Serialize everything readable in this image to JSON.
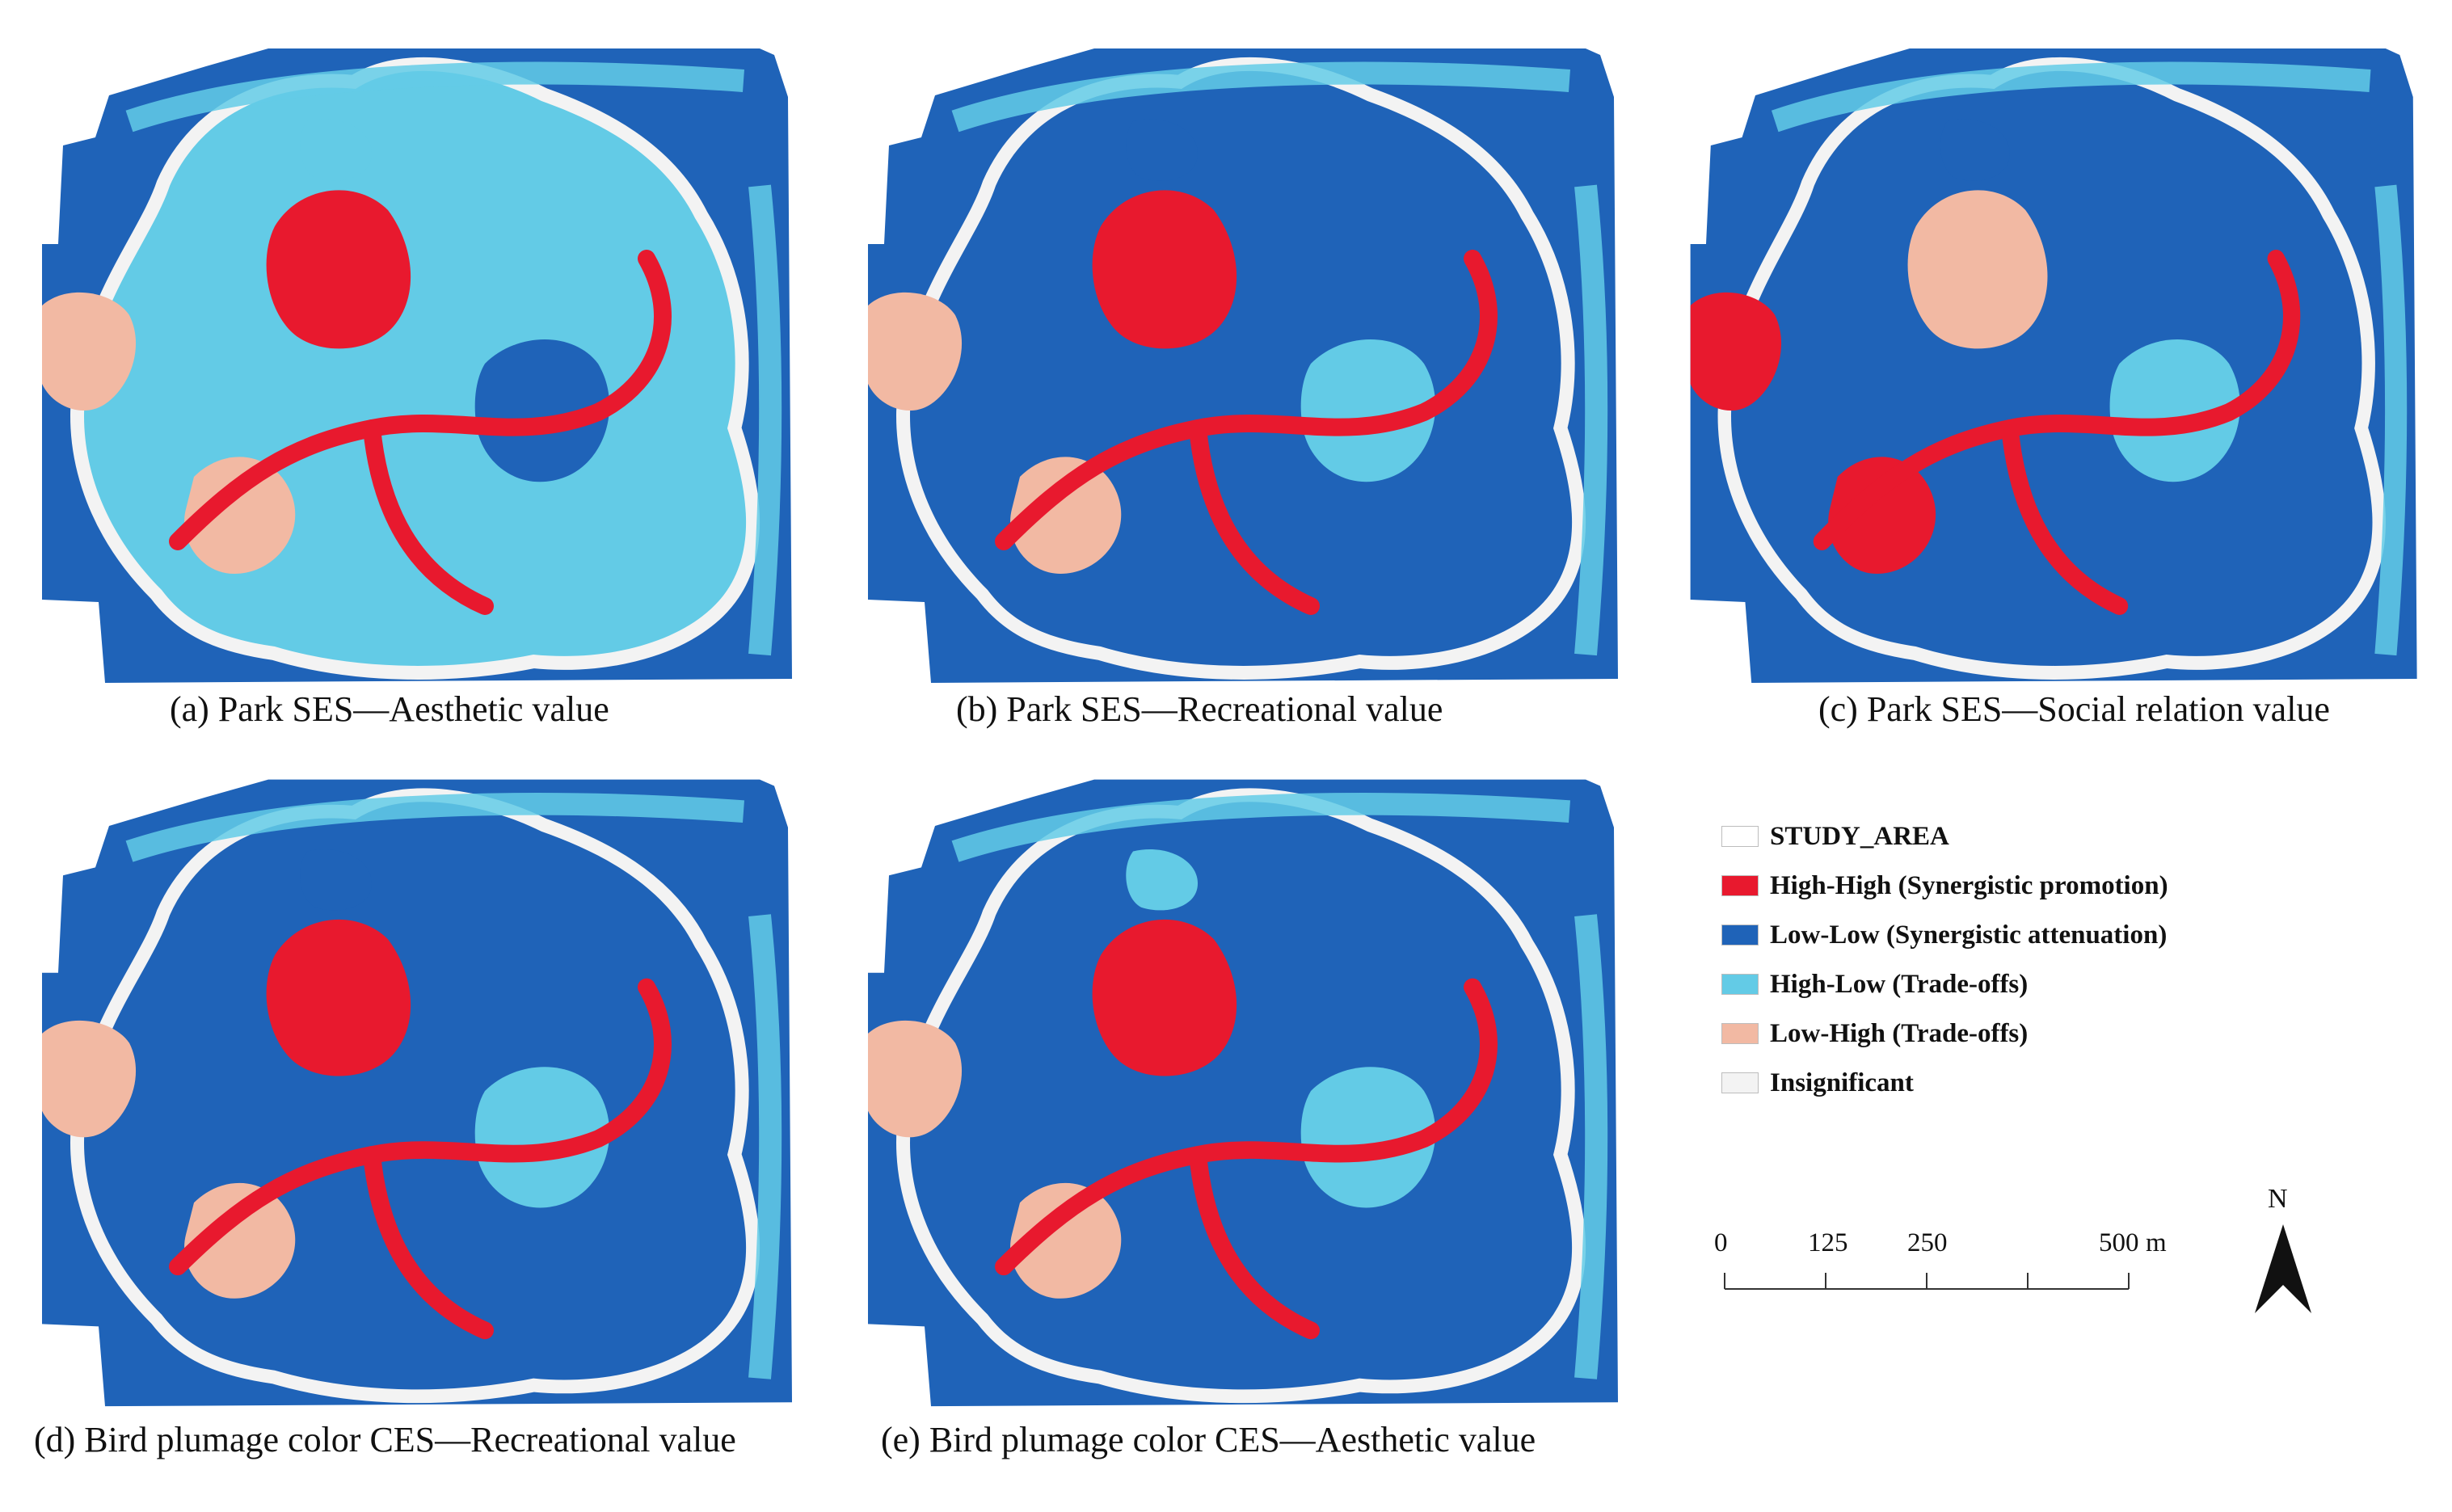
{
  "colors": {
    "study_area": "#ffffff",
    "high_high": "#e8192e",
    "low_low": "#1f63b8",
    "high_low": "#63cbe6",
    "low_high": "#f2b9a3",
    "insignificant": "#f3f3f3"
  },
  "panels": [
    {
      "id": "a",
      "caption": "(a) Park SES—Aesthetic value",
      "zones": [
        "high_low",
        "low_high",
        "high_high",
        "low_low",
        "low_high",
        "high_low"
      ]
    },
    {
      "id": "b",
      "caption": "(b) Park SES—Recreational value",
      "zones": [
        "low_low",
        "low_high",
        "high_high",
        "high_low",
        "low_high",
        "low_low"
      ]
    },
    {
      "id": "c",
      "caption": "(c) Park SES—Social relation value",
      "zones": [
        "low_low",
        "high_high",
        "low_high",
        "high_low",
        "high_high",
        "low_low"
      ]
    },
    {
      "id": "d",
      "caption": "(d) Bird plumage color CES—Recreational value",
      "zones": [
        "low_low",
        "low_high",
        "high_high",
        "high_low",
        "low_high",
        "low_low"
      ]
    },
    {
      "id": "e",
      "caption": "(e) Bird plumage color CES—Aesthetic value",
      "zones": [
        "low_low",
        "low_high",
        "high_high",
        "high_low",
        "low_high",
        "high_low"
      ]
    }
  ],
  "legend": [
    {
      "key": "study_area",
      "label": "STUDY_AREA"
    },
    {
      "key": "high_high",
      "label": "High-High (Synergistic promotion)"
    },
    {
      "key": "low_low",
      "label": "Low-Low (Synergistic attenuation)"
    },
    {
      "key": "high_low",
      "label": "High-Low (Trade-offs)"
    },
    {
      "key": "low_high",
      "label": "Low-High (Trade-offs)"
    },
    {
      "key": "insignificant",
      "label": "Insignificant"
    }
  ],
  "scale": {
    "ticks": [
      {
        "value": 0,
        "label": "0"
      },
      {
        "value": 125,
        "label": "125"
      },
      {
        "value": 250,
        "label": "250"
      },
      {
        "value": 500,
        "label": "500"
      }
    ],
    "unit": "m",
    "max": 500
  },
  "north": {
    "label": "N",
    "icon": "north-arrow-icon"
  }
}
